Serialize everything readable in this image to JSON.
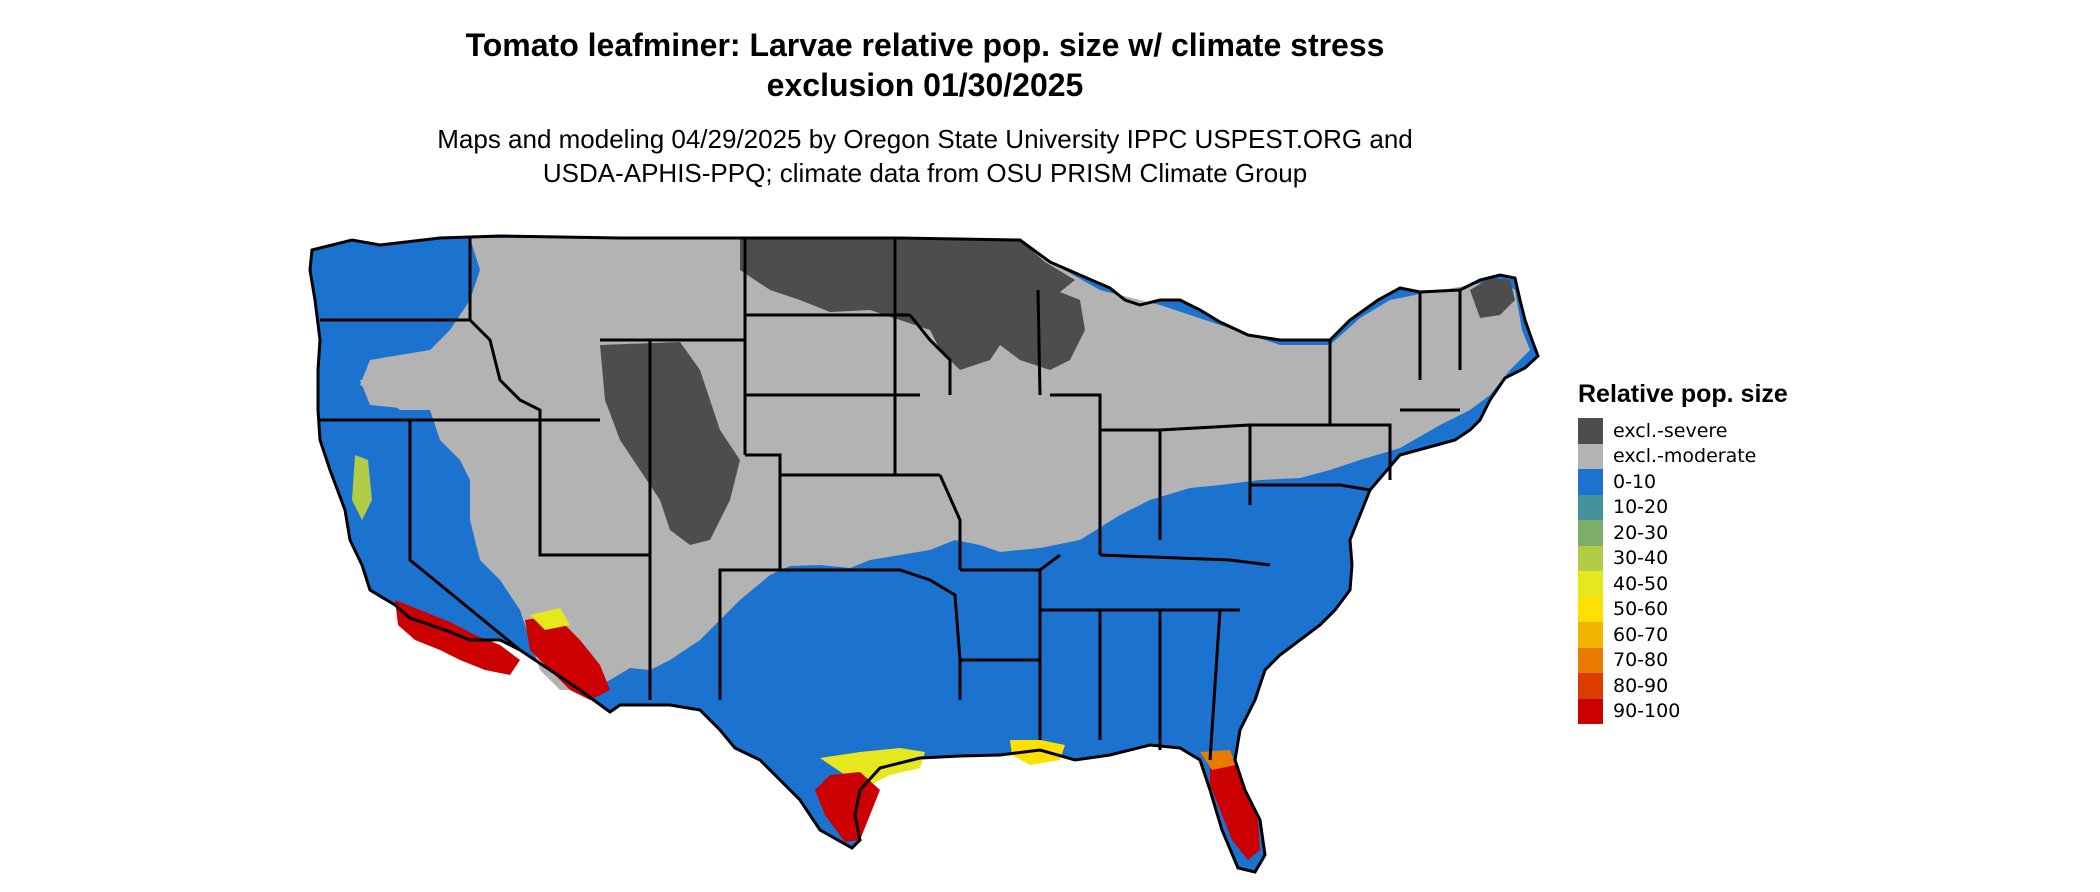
{
  "title_line1": "Tomato leafminer: Larvae relative pop. size w/ climate stress",
  "title_line2": "exclusion 01/30/2025",
  "subtitle_line1": "Maps and modeling 04/29/2025 by Oregon State University IPPC USPEST.ORG and",
  "subtitle_line2": "USDA-APHIS-PPQ; climate data from OSU PRISM Climate Group",
  "legend": {
    "title": "Relative pop. size",
    "items": [
      {
        "label": "excl.-severe",
        "color": "#4d4d4d"
      },
      {
        "label": "excl.-moderate",
        "color": "#b3b3b3"
      },
      {
        "label": "0-10",
        "color": "#1c73cf"
      },
      {
        "label": "10-20",
        "color": "#44939a"
      },
      {
        "label": "20-30",
        "color": "#7cae6a"
      },
      {
        "label": "30-40",
        "color": "#b3cc47"
      },
      {
        "label": "40-50",
        "color": "#e6e81e"
      },
      {
        "label": "50-60",
        "color": "#ffe000"
      },
      {
        "label": "60-70",
        "color": "#f2b300"
      },
      {
        "label": "70-80",
        "color": "#e87b00"
      },
      {
        "label": "80-90",
        "color": "#dd3c00"
      },
      {
        "label": "90-100",
        "color": "#cc0000"
      }
    ]
  }
}
